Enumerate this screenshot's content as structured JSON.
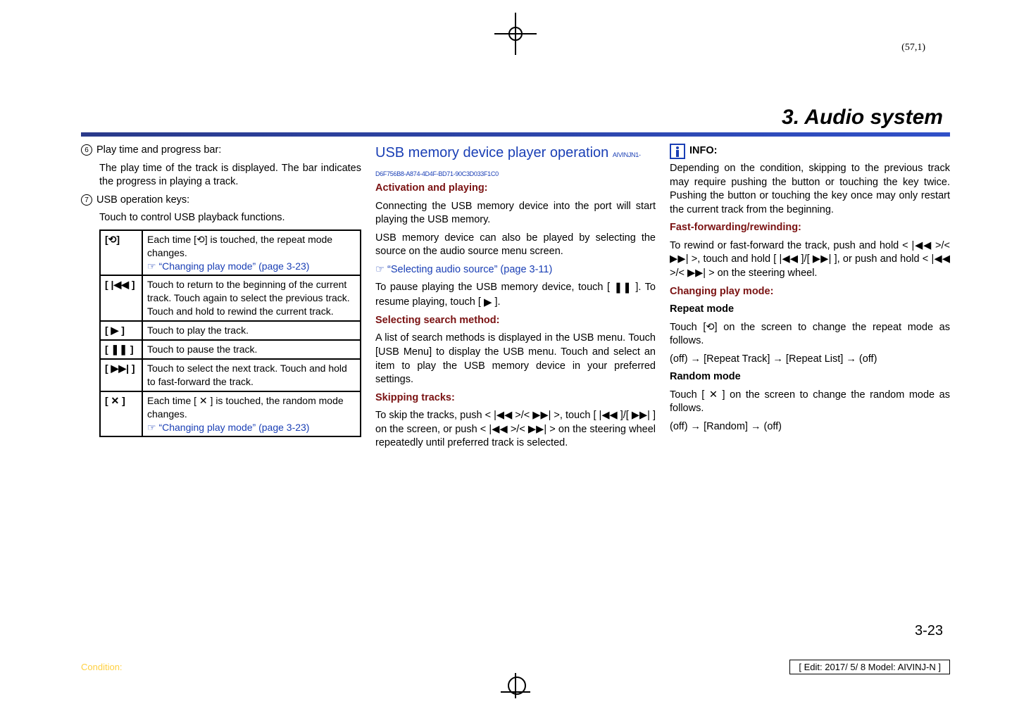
{
  "page_ref": "(57,1)",
  "section_title": "3. Audio system",
  "col1": {
    "item6_label": "Play time and progress bar:",
    "item6_body": "The play time of the track is displayed. The bar indicates the progress in playing a track.",
    "item7_label": "USB operation keys:",
    "item7_body": "Touch to control USB playback functions.",
    "rows": {
      "r1sym": "[⟲]",
      "r1txt": "Each time [⟲] is touched, the repeat mode changes.",
      "r1link": "“Changing play mode” (page 3-23)",
      "r2sym": "[ |◀◀ ]",
      "r2txt": "Touch to return to the beginning of the current track. Touch again to select the previous track. Touch and hold to rewind the current track.",
      "r3sym": "[  ▶  ]",
      "r3txt": "Touch to play the track.",
      "r4sym": "[  ❚❚  ]",
      "r4txt": "Touch to pause the track.",
      "r5sym": "[ ▶▶| ]",
      "r5txt": "Touch to select the next track. Touch and hold to fast-forward the track.",
      "r6sym": "[ ✕ ]",
      "r6txt": "Each time [ ✕ ] is touched, the random mode changes.",
      "r6link": "“Changing play mode” (page 3-23)"
    }
  },
  "col2": {
    "h1": "USB memory device player operation",
    "guid": "AIVINJN1-D6F756B8-A874-4D4F-BD71-90C3D033F1C0",
    "h2": "Activation and playing:",
    "p1": "Connecting the USB memory device into the port will start playing the USB memory.",
    "p2": "USB memory device can also be played by selecting the source on the audio source menu screen.",
    "link1": "“Selecting audio source” (page 3-11)",
    "p3a": "To pause playing the USB memory device, touch [  ",
    "p3b": "  ]. To resume playing, touch [  ",
    "p3c": "  ].",
    "h3": "Selecting search method:",
    "p4": "A list of search methods is displayed in the USB menu. Touch [USB Menu] to display the USB menu. Touch and select an item to play the USB memory device in your preferred settings.",
    "h4": "Skipping tracks:",
    "p5": "To skip the tracks, push < |◀◀ >/< ▶▶| >, touch [ |◀◀ ]/[ ▶▶| ] on the screen, or push < |◀◀ >/< ▶▶| > on the steering wheel repeatedly until preferred track is selected."
  },
  "col3": {
    "info_label": "INFO:",
    "p1": "Depending on the condition, skipping to the previous track may require pushing the button or touching the key twice. Pushing the button or touching the key once may only restart the current track from the beginning.",
    "h1": "Fast-forwarding/rewinding:",
    "p2": "To rewind or fast-forward the track, push and hold < |◀◀ >/< ▶▶| >, touch and hold [ |◀◀ ]/[ ▶▶| ], or push and hold < |◀◀ >/< ▶▶| > on the steering wheel.",
    "h2": "Changing play mode:",
    "b1": "Repeat mode",
    "p3": "Touch [⟲] on the screen to change the repeat mode as follows.",
    "p4": "(off) → [Repeat Track] → [Repeat List] → (off)",
    "b2": "Random mode",
    "p5": "Touch [ ✕ ] on the screen to change the random mode as follows.",
    "p6": "(off) → [Random] → (off)"
  },
  "footer": {
    "condition": "Condition:",
    "edit": "[ Edit: 2017/ 5/ 8    Model:  AIVINJ-N ]",
    "pgnum": "3-23"
  }
}
